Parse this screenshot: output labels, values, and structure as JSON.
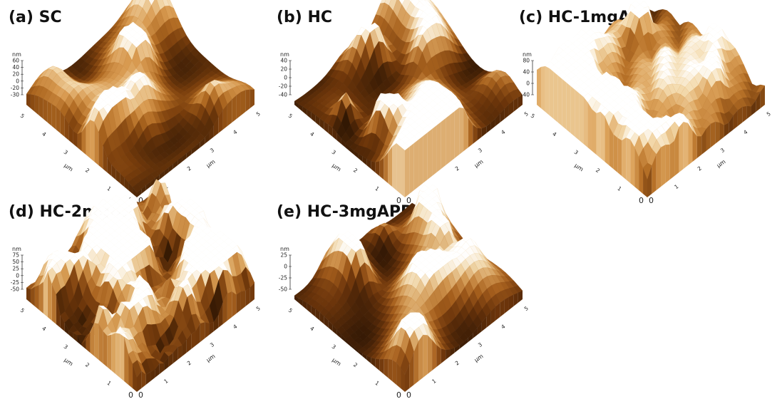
{
  "panels": [
    {
      "id": "a",
      "title": "(a) SC",
      "z_unit": "nm",
      "z_ticks": [
        "60",
        "40",
        "20",
        "0",
        "-20",
        "-30"
      ],
      "xy_unit": "µm",
      "right_ticks": [
        "1",
        "2",
        "3",
        "4",
        "5"
      ],
      "left_ticks": [
        "1",
        "2",
        "3",
        "4",
        "5"
      ],
      "origin": [
        "0",
        "0"
      ],
      "palette": [
        "#3a1c05",
        "#7a3e0c",
        "#b06a22",
        "#d89a50",
        "#f2d6a8",
        "#ffffff"
      ],
      "roughness": "rounded-grains"
    },
    {
      "id": "b",
      "title": "(b) HC",
      "z_unit": "nm",
      "z_ticks": [
        "40",
        "20",
        "0",
        "-20",
        "-40"
      ],
      "xy_unit": "µm",
      "right_ticks": [
        "1",
        "2",
        "3",
        "4",
        "5"
      ],
      "left_ticks": [
        "1",
        "2",
        "3",
        "4",
        "5"
      ],
      "origin": [
        "0",
        "0"
      ],
      "palette": [
        "#2e1603",
        "#6e360a",
        "#a9631f",
        "#d49a55",
        "#f3dcb5",
        "#ffffff"
      ],
      "roughness": "rounded-grains-large"
    },
    {
      "id": "c",
      "title": "(c) HC-1mgAPDO",
      "z_unit": "nm",
      "z_ticks": [
        "80",
        "40",
        "0",
        "-40"
      ],
      "xy_unit": "µm",
      "right_ticks": [
        "1",
        "2",
        "3",
        "4",
        "5"
      ],
      "left_ticks": [
        "1",
        "2",
        "3",
        "4",
        "5"
      ],
      "origin": [
        "0",
        "0"
      ],
      "palette": [
        "#3b1d06",
        "#7c420f",
        "#b87228",
        "#dca25a",
        "#f4dcb0",
        "#ffffff"
      ],
      "roughness": "ridged"
    },
    {
      "id": "d",
      "title": "(d) HC-2mgAPDO",
      "z_unit": "nm",
      "z_ticks": [
        "75",
        "50",
        "25",
        "0",
        "-25",
        "-50"
      ],
      "xy_unit": "µm",
      "right_ticks": [
        "1",
        "2",
        "3",
        "4",
        "5"
      ],
      "left_ticks": [
        "1",
        "2",
        "3",
        "4",
        "5"
      ],
      "origin": [
        "0",
        "0"
      ],
      "palette": [
        "#331803",
        "#70380b",
        "#aa6420",
        "#d69b52",
        "#f2d9ad",
        "#ffffff"
      ],
      "roughness": "spiky"
    },
    {
      "id": "e",
      "title": "(e) HC-3mgAPDO",
      "z_unit": "nm",
      "z_ticks": [
        "25",
        "0",
        "-25",
        "-50"
      ],
      "xy_unit": "µm",
      "right_ticks": [
        "1",
        "2",
        "3",
        "4",
        "5"
      ],
      "left_ticks": [
        "1",
        "2",
        "3",
        "4",
        "5"
      ],
      "origin": [
        "0",
        "0"
      ],
      "palette": [
        "#2f1604",
        "#6c350b",
        "#a65f1d",
        "#d19650",
        "#f0d6a8",
        "#ffffff"
      ],
      "roughness": "rounded-grains"
    }
  ]
}
